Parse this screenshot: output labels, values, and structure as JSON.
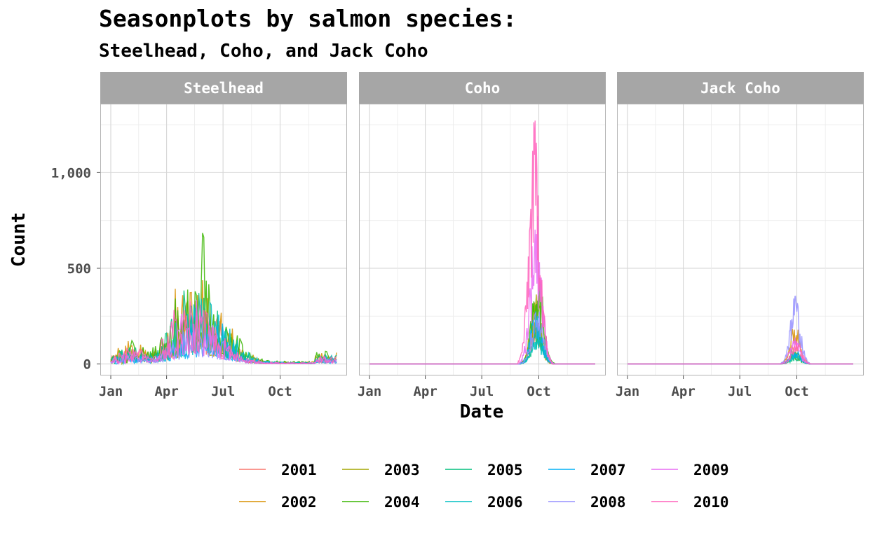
{
  "chart_data": {
    "type": "line",
    "title": "Seasonplots by salmon species:",
    "subtitle": "Steelhead, Coho, and Jack Coho",
    "xlabel": "Date",
    "ylabel": "Count",
    "x_ticks": [
      "Jan",
      "Apr",
      "Jul",
      "Oct"
    ],
    "y_ticks": [
      {
        "value": 0,
        "label": "0"
      },
      {
        "value": 500,
        "label": "500"
      },
      {
        "value": 1000,
        "label": "1,000"
      }
    ],
    "ylim": [
      -60,
      1360
    ],
    "grid": true,
    "legend_position": "bottom",
    "legend": [
      {
        "year": "2001",
        "color": "#F8766D"
      },
      {
        "year": "2002",
        "color": "#D89000"
      },
      {
        "year": "2003",
        "color": "#A3A500"
      },
      {
        "year": "2004",
        "color": "#39B600"
      },
      {
        "year": "2005",
        "color": "#00BF7D"
      },
      {
        "year": "2006",
        "color": "#00BFC4"
      },
      {
        "year": "2007",
        "color": "#00B0F6"
      },
      {
        "year": "2008",
        "color": "#9590FF"
      },
      {
        "year": "2009",
        "color": "#E76BF3"
      },
      {
        "year": "2010",
        "color": "#FF62BC"
      }
    ],
    "facets": [
      {
        "name": "Steelhead",
        "peak_day": 140,
        "spread": 38,
        "series_peaks": {
          "2001": 470,
          "2002": 650,
          "2003": 440,
          "2004": 700,
          "2005": 520,
          "2006": 480,
          "2007": 330,
          "2008": 300,
          "2009": 350,
          "2010": 450
        }
      },
      {
        "name": "Coho",
        "peak_day": 270,
        "spread": 9,
        "series_peaks": {
          "2001": 250,
          "2002": 230,
          "2003": 380,
          "2004": 500,
          "2005": 200,
          "2006": 160,
          "2007": 280,
          "2008": 300,
          "2009": 830,
          "2010": 1290
        }
      },
      {
        "name": "Jack Coho",
        "peak_day": 272,
        "spread": 8,
        "series_peaks": {
          "2001": 110,
          "2002": 220,
          "2003": 60,
          "2004": 80,
          "2005": 50,
          "2006": 60,
          "2007": 80,
          "2008": 380,
          "2009": 140,
          "2010": 120
        }
      }
    ]
  }
}
